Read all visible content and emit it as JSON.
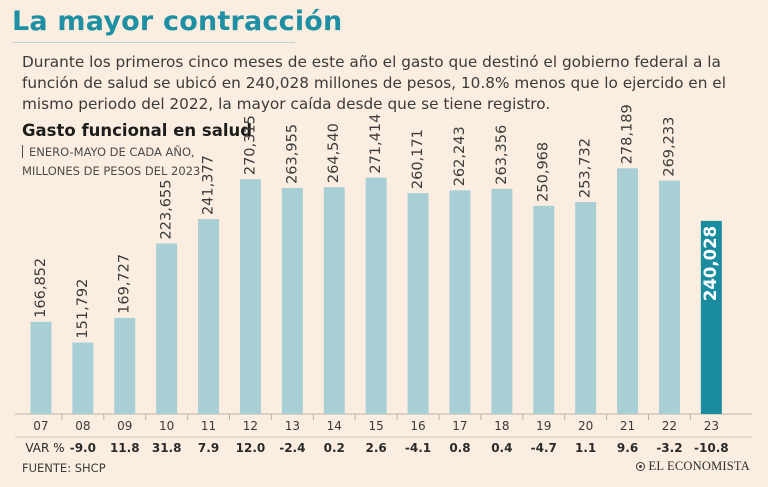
{
  "header": {
    "title": "La mayor contracción",
    "intro": "Durante los primeros cinco meses de este año el gasto que destinó el gobierno federal a la función de salud se ubicó en 240,028 millones de pesos, 10.8% menos que lo ejercido en el mismo periodo del 2022, la mayor caída desde que se tiene registro."
  },
  "chart_data": {
    "type": "bar",
    "title": "Gasto funcional en salud",
    "subtitle_line1": "ENERO-MAYO DE CADA AÑO,",
    "subtitle_line2": "MILLONES DE PESOS DEL 2023",
    "categories": [
      "07",
      "08",
      "09",
      "10",
      "11",
      "12",
      "13",
      "14",
      "15",
      "16",
      "17",
      "18",
      "19",
      "20",
      "21",
      "22",
      "23"
    ],
    "values": [
      166852,
      151792,
      169727,
      223655,
      241377,
      270315,
      263955,
      264540,
      271414,
      260171,
      262243,
      263356,
      250968,
      253732,
      278189,
      269233,
      240028
    ],
    "value_labels": [
      "166,852",
      "151,792",
      "169,727",
      "223,655",
      "241,377",
      "270,315",
      "263,955",
      "264,540",
      "271,414",
      "260,171",
      "262,243",
      "263,356",
      "250,968",
      "253,732",
      "278,189",
      "269,233",
      "240,028"
    ],
    "var_label": "VAR %",
    "var_pct": [
      "-9.0",
      "11.8",
      "31.8",
      "7.9",
      "12.0",
      "-2.4",
      "0.2",
      "2.6",
      "-4.1",
      "0.8",
      "0.4",
      "-4.7",
      "1.1",
      "9.6",
      "-3.2",
      "-10.8"
    ],
    "highlight_index": 16,
    "ylim": [
      100000,
      290000
    ],
    "colors": {
      "bar": "#a9cfd6",
      "highlight": "#1a8ca0",
      "title": "#1f8fa3",
      "background": "#fbeee0"
    }
  },
  "footer": {
    "source": "FUENTE: SHCP",
    "logo_text": "EL ECONOMISTA"
  }
}
